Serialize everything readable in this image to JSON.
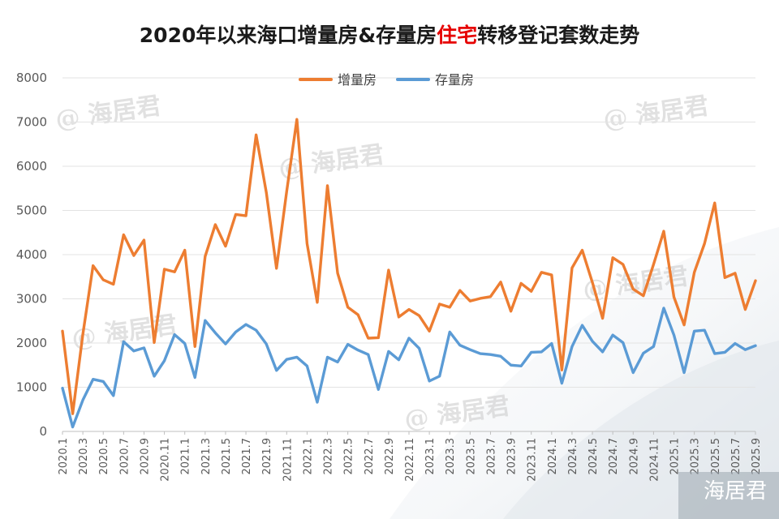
{
  "chart_data": {
    "type": "line",
    "title_parts": [
      {
        "text": "2020年以来海口增量房&存量房",
        "color": "#1a1a1a"
      },
      {
        "text": "住宅",
        "color": "#e60000"
      },
      {
        "text": "转移登记套数走势",
        "color": "#1a1a1a"
      }
    ],
    "xlabel": "",
    "ylabel": "",
    "ylim": [
      0,
      8000
    ],
    "yticks": [
      0,
      1000,
      2000,
      3000,
      4000,
      5000,
      6000,
      7000,
      8000
    ],
    "grid": true,
    "legend_position": "top-center",
    "x": [
      "2020.1",
      "2020.2",
      "2020.3",
      "2020.4",
      "2020.5",
      "2020.6",
      "2020.7",
      "2020.8",
      "2020.9",
      "2020.10",
      "2020.11",
      "2020.12",
      "2021.1",
      "2021.2",
      "2021.3",
      "2021.4",
      "2021.5",
      "2021.6",
      "2021.7",
      "2021.8",
      "2021.9",
      "2021.10",
      "2021.11",
      "2021.12",
      "2022.1",
      "2022.2",
      "2022.3",
      "2022.4",
      "2022.5",
      "2022.6",
      "2022.7",
      "2022.8",
      "2022.9",
      "2022.10",
      "2022.11",
      "2022.12",
      "2023.1",
      "2023.2",
      "2023.3",
      "2023.4",
      "2023.5",
      "2023.6",
      "2023.7",
      "2023.8",
      "2023.9",
      "2023.10",
      "2023.11",
      "2023.12",
      "2024.1",
      "2024.2",
      "2024.3",
      "2024.4",
      "2024.5",
      "2024.6",
      "2024.7",
      "2024.8",
      "2024.9",
      "2024.10",
      "2024.11",
      "2024.12",
      "2025.1",
      "2025.2",
      "2025.3",
      "2025.4",
      "2025.5",
      "2025.6",
      "2025.7",
      "2025.8",
      "2025.9"
    ],
    "x_tick_labels": [
      "2020.1",
      "2020.3",
      "2020.5",
      "2020.7",
      "2020.9",
      "2020.11",
      "2021.1",
      "2021.3",
      "2021.5",
      "2021.7",
      "2021.9",
      "2021.11",
      "2022.1",
      "2022.3",
      "2022.5",
      "2022.7",
      "2022.9",
      "2022.11",
      "2023.1",
      "2023.3",
      "2023.5",
      "2023.7",
      "2023.9",
      "2023.11",
      "2024.1",
      "2024.3",
      "2024.5",
      "2024.7",
      "2024.9",
      "2024.11",
      "2025.1",
      "2025.3",
      "2025.5",
      "2025.7",
      "2025.9"
    ],
    "series": [
      {
        "name": "增量房",
        "color": "#ed7d31",
        "values": [
          2270,
          400,
          2200,
          3750,
          3430,
          3330,
          4450,
          3980,
          4330,
          2010,
          3670,
          3610,
          4100,
          1920,
          3960,
          4680,
          4190,
          4910,
          4880,
          6710,
          5410,
          3690,
          5430,
          7060,
          4250,
          2920,
          5560,
          3580,
          2810,
          2640,
          2110,
          2120,
          3650,
          2590,
          2760,
          2620,
          2270,
          2880,
          2810,
          3190,
          2950,
          3010,
          3050,
          3380,
          2720,
          3350,
          3170,
          3600,
          3540,
          1390,
          3700,
          4100,
          3370,
          2560,
          3930,
          3780,
          3220,
          3070,
          3780,
          4530,
          3040,
          2410,
          3600,
          4250,
          5170,
          3480,
          3580,
          2760,
          3410
        ]
      },
      {
        "name": "存量房",
        "color": "#5b9bd5",
        "values": [
          980,
          100,
          710,
          1180,
          1130,
          810,
          2030,
          1820,
          1890,
          1250,
          1600,
          2190,
          1990,
          1220,
          2510,
          2230,
          1980,
          2250,
          2420,
          2290,
          1980,
          1380,
          1630,
          1680,
          1480,
          660,
          1680,
          1570,
          1970,
          1840,
          1740,
          950,
          1810,
          1620,
          2110,
          1880,
          1140,
          1250,
          2250,
          1950,
          1850,
          1760,
          1740,
          1700,
          1500,
          1480,
          1790,
          1800,
          1990,
          1090,
          1920,
          2400,
          2040,
          1800,
          2180,
          2010,
          1330,
          1770,
          1920,
          2790,
          2180,
          1330,
          2270,
          2290,
          1760,
          1790,
          1990,
          1850,
          1940
        ]
      }
    ],
    "watermark_text": "@ 海居君",
    "corner_mark_text": "海居君"
  }
}
